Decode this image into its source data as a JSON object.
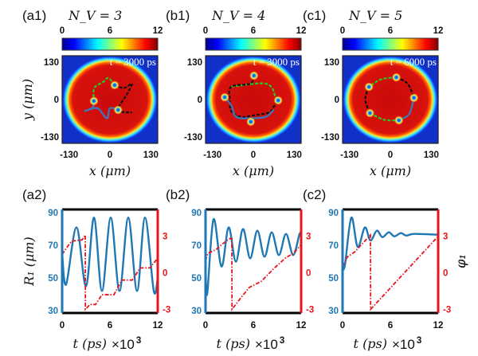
{
  "chart_data": [
    {
      "type": "heatmap",
      "panel": "(a1)",
      "title": "N_V = 3",
      "time_label": "t = 3000 ps",
      "colorbar": {
        "ticks": [
          "0",
          "6",
          "12"
        ],
        "range": [
          0,
          12
        ],
        "colormap": "jet"
      },
      "xticks": [
        "-130",
        "0",
        "130"
      ],
      "yticks": [
        "130",
        "0",
        "-130"
      ],
      "xlim": [
        -152,
        152
      ],
      "ylim": [
        -152,
        152
      ],
      "xlabel": "x (μm)",
      "ylabel": "y (μm)",
      "vortices": [
        [
          15,
          50
        ],
        [
          -51,
          -5
        ],
        [
          26,
          -36
        ]
      ],
      "trajectories": [
        {
          "color": "#22cc22",
          "style": "dashed",
          "points": [
            [
              15,
              50
            ],
            [
              -5,
              75
            ],
            [
              -20,
              62
            ],
            [
              -50,
              40
            ],
            [
              -51,
              -5
            ]
          ]
        },
        {
          "color": "#111111",
          "style": "dashed",
          "points": [
            [
              15,
              50
            ],
            [
              45,
              40
            ],
            [
              70,
              55
            ],
            [
              55,
              20
            ],
            [
              26,
              -36
            ],
            [
              70,
              -45
            ]
          ]
        },
        {
          "color": "#3a78c0",
          "style": "solid",
          "points": [
            [
              -51,
              -5
            ],
            [
              -55,
              -28
            ],
            [
              -80,
              -40
            ],
            [
              -40,
              -30
            ],
            [
              -10,
              -65
            ],
            [
              0,
              -30
            ],
            [
              26,
              -36
            ]
          ]
        }
      ]
    },
    {
      "type": "heatmap",
      "panel": "(b1)",
      "title": "N_V = 4",
      "time_label": "t = 3000 ps",
      "colorbar": {
        "ticks": [
          "0",
          "6",
          "12"
        ],
        "range": [
          0,
          12
        ],
        "colormap": "jet"
      },
      "xticks": [
        "-130",
        "0",
        "130"
      ],
      "yticks": [
        "130",
        "0",
        "-130"
      ],
      "xlim": [
        -152,
        152
      ],
      "ylim": [
        -152,
        152
      ],
      "xlabel": "x (μm)",
      "vortices": [
        [
          2,
          83
        ],
        [
          -91,
          8
        ],
        [
          79,
          -3
        ],
        [
          -8,
          -77
        ]
      ],
      "trajectories": [
        {
          "color": "#22cc22",
          "style": "dashed",
          "points": [
            [
              -70,
              45
            ],
            [
              -30,
              50
            ],
            [
              2,
              55
            ],
            [
              40,
              55
            ],
            [
              60,
              40
            ],
            [
              70,
              10
            ],
            [
              79,
              -3
            ]
          ]
        },
        {
          "color": "#111111",
          "style": "dashed",
          "points": [
            [
              2,
              83
            ],
            [
              -10,
              55
            ],
            [
              -70,
              45
            ],
            [
              -75,
              0
            ],
            [
              -70,
              -40
            ],
            [
              -40,
              -60
            ],
            [
              0,
              -55
            ],
            [
              50,
              -45
            ],
            [
              65,
              -25
            ],
            [
              79,
              -3
            ]
          ]
        },
        {
          "color": "#3a78c0",
          "style": "solid",
          "points": [
            [
              -91,
              8
            ],
            [
              -70,
              -20
            ],
            [
              -55,
              -60
            ],
            [
              -10,
              -65
            ],
            [
              40,
              -60
            ],
            [
              65,
              -35
            ]
          ]
        }
      ]
    },
    {
      "type": "heatmap",
      "panel": "(c1)",
      "title": "N_V = 5",
      "time_label": "t = 6000 ps",
      "colorbar": {
        "ticks": [
          "0",
          "6",
          "12"
        ],
        "range": [
          0,
          12
        ],
        "colormap": "jet"
      },
      "xticks": [
        "-130",
        "0",
        "130"
      ],
      "yticks": [
        "130",
        "0",
        "-130"
      ],
      "xlim": [
        -152,
        152
      ],
      "ylim": [
        -152,
        152
      ],
      "xlabel": "x (μm)",
      "vortices": [
        [
          19,
          77
        ],
        [
          -68,
          44
        ],
        [
          75,
          6
        ],
        [
          -65,
          -47
        ],
        [
          27,
          -72
        ]
      ],
      "trajectories": [
        {
          "color": "#22cc22",
          "style": "dashed",
          "points": [
            [
              19,
              77
            ],
            [
              -30,
              70
            ],
            [
              -68,
              44
            ]
          ]
        },
        {
          "color": "#111111",
          "style": "dashed",
          "points": [
            [
              19,
              77
            ],
            [
              55,
              55
            ],
            [
              75,
              6
            ]
          ]
        },
        {
          "color": "#111111",
          "style": "dashed",
          "points": [
            [
              -68,
              44
            ],
            [
              -80,
              0
            ],
            [
              -65,
              -47
            ]
          ]
        },
        {
          "color": "#22cc22",
          "style": "dashed",
          "points": [
            [
              -65,
              -47
            ],
            [
              -20,
              -70
            ],
            [
              27,
              -72
            ]
          ]
        },
        {
          "color": "#3a78c0",
          "style": "solid",
          "points": [
            [
              27,
              -72
            ],
            [
              60,
              -50
            ],
            [
              75,
              6
            ]
          ]
        }
      ]
    },
    {
      "type": "line",
      "panel": "(a2)",
      "xlabel": "t (ps)",
      "xscale_label": "×10",
      "xscale_exp": "3",
      "xticks": [
        "0",
        "6",
        "12"
      ],
      "xlim": [
        0,
        12
      ],
      "ylabel": "R₁ (μm)",
      "yticks": [
        "90",
        "70",
        "50",
        "30"
      ],
      "ylim": [
        28.5,
        92
      ],
      "y2label": "φ₁",
      "y2ticks": [
        "3",
        "0",
        "-3"
      ],
      "y2lim": [
        -3.3,
        5.2
      ],
      "series": [
        {
          "axis": "left",
          "color": "#1f77b4",
          "style": "solid",
          "x": [
            0,
            0.5,
            1.8,
            3.0,
            4.0,
            5.0,
            6.1,
            7.2,
            8.3,
            9.4,
            10.4,
            11.5,
            12
          ],
          "y": [
            65,
            46,
            81,
            45,
            87,
            42,
            87,
            42,
            87,
            42,
            87,
            42,
            50
          ]
        },
        {
          "axis": "right",
          "color": "#e8141b",
          "style": "dashdot",
          "x": [
            0,
            0.5,
            1.2,
            2.5,
            2.9,
            2.92,
            3.5,
            4.2,
            5.0,
            6.5,
            7.5,
            8.8,
            9.8,
            11,
            12
          ],
          "y": [
            1.5,
            2.0,
            2.6,
            2.7,
            3.1,
            -3.0,
            -2.6,
            -2.6,
            -1.8,
            -1.8,
            -0.6,
            -0.6,
            0.4,
            0.4,
            1.2
          ]
        }
      ]
    },
    {
      "type": "line",
      "panel": "(b2)",
      "xlabel": "t (ps)",
      "xscale_label": "×10",
      "xscale_exp": "3",
      "xticks": [
        "0",
        "6",
        "12"
      ],
      "xlim": [
        0,
        12
      ],
      "yticks": [
        "90",
        "70",
        "50",
        "30"
      ],
      "ylim": [
        28.5,
        92
      ],
      "y2ticks": [
        "3",
        "0",
        "-3"
      ],
      "y2lim": [
        -3.3,
        5.2
      ],
      "series": [
        {
          "axis": "left",
          "color": "#1f77b4",
          "style": "solid",
          "x": [
            0,
            0.2,
            1.0,
            2.0,
            2.9,
            3.8,
            4.7,
            5.6,
            6.5,
            7.4,
            8.3,
            9.2,
            10.1,
            11.0,
            11.8,
            12
          ],
          "y": [
            60,
            40,
            86,
            57,
            81,
            60,
            80,
            62,
            79,
            63,
            78,
            64,
            77,
            64,
            77,
            76
          ]
        },
        {
          "axis": "right",
          "color": "#e8141b",
          "style": "dashdot",
          "x": [
            0,
            0.3,
            1.3,
            2.2,
            3.0,
            3.3,
            3.32,
            4.5,
            5.5,
            7,
            8.5,
            10,
            11,
            12
          ],
          "y": [
            1.0,
            1.6,
            1.9,
            2.4,
            2.8,
            2.8,
            -3.0,
            -2.0,
            -1.2,
            -0.7,
            0.3,
            1.2,
            1.6,
            2.3
          ]
        }
      ]
    },
    {
      "type": "line",
      "panel": "(c2)",
      "xlabel": "t (ps)",
      "xscale_label": "×10",
      "xscale_exp": "3",
      "xticks": [
        "0",
        "6",
        "12"
      ],
      "xlim": [
        0,
        12
      ],
      "yticks": [
        "90",
        "70",
        "50",
        "30"
      ],
      "ylim": [
        28.5,
        92
      ],
      "y2label": "φ₁",
      "y2ticks": [
        "3",
        "0",
        "-3"
      ],
      "y2lim": [
        -3.3,
        5.2
      ],
      "series": [
        {
          "axis": "left",
          "color": "#1f77b4",
          "style": "solid",
          "x": [
            0,
            0.3,
            1.1,
            1.9,
            2.8,
            3.5,
            4.3,
            5.0,
            5.8,
            6.5,
            7.3,
            8.0,
            9.0,
            12
          ],
          "y": [
            56,
            58,
            87,
            69,
            81,
            73,
            79,
            75,
            78,
            75.5,
            77.5,
            76,
            77,
            76.5
          ]
        },
        {
          "axis": "right",
          "color": "#e8141b",
          "style": "dashdot",
          "x": [
            0,
            0.6,
            1.5,
            3.5,
            3.52,
            12,
            12.0
          ],
          "y": [
            0.5,
            1.3,
            1.7,
            3.1,
            -3.0,
            3.0,
            -3.0
          ]
        }
      ]
    }
  ]
}
